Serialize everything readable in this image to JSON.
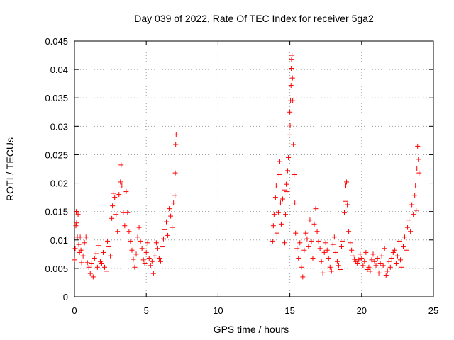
{
  "chart_data": {
    "type": "scatter",
    "title": "Day 039 of 2022, Rate Of TEC Index for receiver 5ga2",
    "xlabel": "GPS time / hours",
    "ylabel": "ROTI / TECUs",
    "xlim": [
      0,
      25
    ],
    "ylim": [
      0,
      0.045
    ],
    "x_ticks": [
      0,
      5,
      10,
      15,
      20,
      25
    ],
    "x_tick_labels": [
      "0",
      "5",
      "10",
      "15",
      "20",
      "25"
    ],
    "y_ticks": [
      0,
      0.005,
      0.01,
      0.015,
      0.02,
      0.025,
      0.03,
      0.035,
      0.04,
      0.045
    ],
    "y_tick_labels": [
      "0",
      "0.005",
      "0.01",
      "0.015",
      "0.02",
      "0.025",
      "0.03",
      "0.035",
      "0.04",
      "0.045"
    ],
    "grid": true,
    "marker": "+",
    "marker_color": "#ff0000",
    "series": [
      {
        "name": "ROTI",
        "points": [
          [
            0.0,
            0.0065
          ],
          [
            0.05,
            0.0085
          ],
          [
            0.1,
            0.0125
          ],
          [
            0.12,
            0.015
          ],
          [
            0.15,
            0.013
          ],
          [
            0.2,
            0.0105
          ],
          [
            0.25,
            0.0145
          ],
          [
            0.3,
            0.0092
          ],
          [
            0.35,
            0.0078
          ],
          [
            0.4,
            0.0105
          ],
          [
            0.45,
            0.0082
          ],
          [
            0.5,
            0.006
          ],
          [
            0.6,
            0.0072
          ],
          [
            0.7,
            0.0095
          ],
          [
            0.8,
            0.0105
          ],
          [
            0.9,
            0.006
          ],
          [
            1.0,
            0.0052
          ],
          [
            1.1,
            0.0041
          ],
          [
            1.2,
            0.0058
          ],
          [
            1.3,
            0.0035
          ],
          [
            1.4,
            0.0068
          ],
          [
            1.5,
            0.0076
          ],
          [
            1.6,
            0.0052
          ],
          [
            1.7,
            0.009
          ],
          [
            1.8,
            0.0062
          ],
          [
            1.9,
            0.0058
          ],
          [
            2.0,
            0.0078
          ],
          [
            2.1,
            0.0052
          ],
          [
            2.2,
            0.0045
          ],
          [
            2.3,
            0.0098
          ],
          [
            2.4,
            0.0088
          ],
          [
            2.5,
            0.0072
          ],
          [
            2.6,
            0.0138
          ],
          [
            2.65,
            0.016
          ],
          [
            2.7,
            0.0182
          ],
          [
            2.8,
            0.0175
          ],
          [
            2.9,
            0.0145
          ],
          [
            3.0,
            0.0115
          ],
          [
            3.1,
            0.018
          ],
          [
            3.2,
            0.0202
          ],
          [
            3.25,
            0.0232
          ],
          [
            3.3,
            0.0195
          ],
          [
            3.4,
            0.0148
          ],
          [
            3.5,
            0.0125
          ],
          [
            3.6,
            0.0185
          ],
          [
            3.7,
            0.0148
          ],
          [
            3.8,
            0.0115
          ],
          [
            3.9,
            0.0098
          ],
          [
            4.0,
            0.0082
          ],
          [
            4.1,
            0.0066
          ],
          [
            4.2,
            0.0052
          ],
          [
            4.3,
            0.0075
          ],
          [
            4.4,
            0.0105
          ],
          [
            4.5,
            0.0122
          ],
          [
            4.6,
            0.0098
          ],
          [
            4.7,
            0.0085
          ],
          [
            4.8,
            0.0065
          ],
          [
            4.9,
            0.0058
          ],
          [
            5.0,
            0.0078
          ],
          [
            5.1,
            0.0095
          ],
          [
            5.2,
            0.0068
          ],
          [
            5.3,
            0.0055
          ],
          [
            5.4,
            0.0062
          ],
          [
            5.5,
            0.0041
          ],
          [
            5.6,
            0.0072
          ],
          [
            5.7,
            0.0095
          ],
          [
            5.8,
            0.0085
          ],
          [
            5.9,
            0.0068
          ],
          [
            6.0,
            0.0062
          ],
          [
            6.1,
            0.0088
          ],
          [
            6.2,
            0.0102
          ],
          [
            6.3,
            0.0118
          ],
          [
            6.4,
            0.0132
          ],
          [
            6.5,
            0.0108
          ],
          [
            6.6,
            0.0155
          ],
          [
            6.7,
            0.0142
          ],
          [
            6.8,
            0.0122
          ],
          [
            6.9,
            0.0165
          ],
          [
            7.0,
            0.0178
          ],
          [
            7.02,
            0.0218
          ],
          [
            7.05,
            0.0268
          ],
          [
            7.08,
            0.0285
          ],
          [
            13.8,
            0.0098
          ],
          [
            13.85,
            0.0125
          ],
          [
            13.9,
            0.0145
          ],
          [
            14.0,
            0.0175
          ],
          [
            14.05,
            0.0195
          ],
          [
            14.1,
            0.0112
          ],
          [
            14.2,
            0.0148
          ],
          [
            14.25,
            0.0215
          ],
          [
            14.3,
            0.0238
          ],
          [
            14.35,
            0.0165
          ],
          [
            14.4,
            0.0128
          ],
          [
            14.5,
            0.0172
          ],
          [
            14.6,
            0.0188
          ],
          [
            14.65,
            0.0095
          ],
          [
            14.7,
            0.0145
          ],
          [
            14.75,
            0.0198
          ],
          [
            14.8,
            0.0185
          ],
          [
            14.85,
            0.0222
          ],
          [
            14.9,
            0.0245
          ],
          [
            14.95,
            0.0285
          ],
          [
            15.0,
            0.0325
          ],
          [
            15.02,
            0.0302
          ],
          [
            15.05,
            0.0345
          ],
          [
            15.08,
            0.0372
          ],
          [
            15.1,
            0.0402
          ],
          [
            15.12,
            0.0418
          ],
          [
            15.15,
            0.0425
          ],
          [
            15.18,
            0.0385
          ],
          [
            15.2,
            0.0345
          ],
          [
            15.25,
            0.0268
          ],
          [
            15.3,
            0.0215
          ],
          [
            15.35,
            0.0165
          ],
          [
            15.4,
            0.0112
          ],
          [
            15.5,
            0.0085
          ],
          [
            15.6,
            0.0068
          ],
          [
            15.7,
            0.0095
          ],
          [
            15.8,
            0.0052
          ],
          [
            15.9,
            0.0035
          ],
          [
            16.0,
            0.0082
          ],
          [
            16.1,
            0.0112
          ],
          [
            16.2,
            0.0102
          ],
          [
            16.3,
            0.0088
          ],
          [
            16.4,
            0.0135
          ],
          [
            16.5,
            0.0098
          ],
          [
            16.6,
            0.0068
          ],
          [
            16.7,
            0.0128
          ],
          [
            16.8,
            0.0155
          ],
          [
            16.9,
            0.0115
          ],
          [
            17.0,
            0.0098
          ],
          [
            17.1,
            0.0085
          ],
          [
            17.2,
            0.0062
          ],
          [
            17.3,
            0.0042
          ],
          [
            17.4,
            0.0078
          ],
          [
            17.5,
            0.0095
          ],
          [
            17.6,
            0.0082
          ],
          [
            17.7,
            0.0068
          ],
          [
            17.8,
            0.0052
          ],
          [
            17.9,
            0.0045
          ],
          [
            18.0,
            0.0092
          ],
          [
            18.1,
            0.0105
          ],
          [
            18.2,
            0.0078
          ],
          [
            18.3,
            0.0062
          ],
          [
            18.4,
            0.0055
          ],
          [
            18.5,
            0.0048
          ],
          [
            18.6,
            0.0088
          ],
          [
            18.7,
            0.0098
          ],
          [
            18.8,
            0.0148
          ],
          [
            18.85,
            0.0168
          ],
          [
            18.9,
            0.0195
          ],
          [
            18.95,
            0.0202
          ],
          [
            19.0,
            0.0162
          ],
          [
            19.1,
            0.0115
          ],
          [
            19.2,
            0.0095
          ],
          [
            19.3,
            0.0082
          ],
          [
            19.4,
            0.0072
          ],
          [
            19.5,
            0.0066
          ],
          [
            19.6,
            0.0062
          ],
          [
            19.7,
            0.0058
          ],
          [
            19.8,
            0.0065
          ],
          [
            19.9,
            0.0075
          ],
          [
            20.0,
            0.0068
          ],
          [
            20.1,
            0.0055
          ],
          [
            20.2,
            0.0062
          ],
          [
            20.3,
            0.0078
          ],
          [
            20.4,
            0.0048
          ],
          [
            20.5,
            0.0052
          ],
          [
            20.6,
            0.0045
          ],
          [
            20.7,
            0.0065
          ],
          [
            20.8,
            0.0075
          ],
          [
            20.9,
            0.0062
          ],
          [
            21.0,
            0.0055
          ],
          [
            21.1,
            0.0068
          ],
          [
            21.2,
            0.0042
          ],
          [
            21.3,
            0.0058
          ],
          [
            21.4,
            0.0072
          ],
          [
            21.5,
            0.0055
          ],
          [
            21.6,
            0.0085
          ],
          [
            21.7,
            0.0038
          ],
          [
            21.8,
            0.0045
          ],
          [
            21.9,
            0.0062
          ],
          [
            22.0,
            0.0052
          ],
          [
            22.1,
            0.0068
          ],
          [
            22.2,
            0.0078
          ],
          [
            22.3,
            0.0082
          ],
          [
            22.4,
            0.0058
          ],
          [
            22.5,
            0.0072
          ],
          [
            22.6,
            0.0098
          ],
          [
            22.7,
            0.0065
          ],
          [
            22.8,
            0.0052
          ],
          [
            22.9,
            0.0088
          ],
          [
            23.0,
            0.0105
          ],
          [
            23.1,
            0.0082
          ],
          [
            23.2,
            0.0122
          ],
          [
            23.3,
            0.0135
          ],
          [
            23.4,
            0.0115
          ],
          [
            23.5,
            0.0162
          ],
          [
            23.6,
            0.0145
          ],
          [
            23.7,
            0.0178
          ],
          [
            23.75,
            0.0195
          ],
          [
            23.8,
            0.0152
          ],
          [
            23.85,
            0.0225
          ],
          [
            23.9,
            0.0265
          ],
          [
            23.95,
            0.0242
          ],
          [
            24.0,
            0.0218
          ]
        ]
      }
    ]
  }
}
